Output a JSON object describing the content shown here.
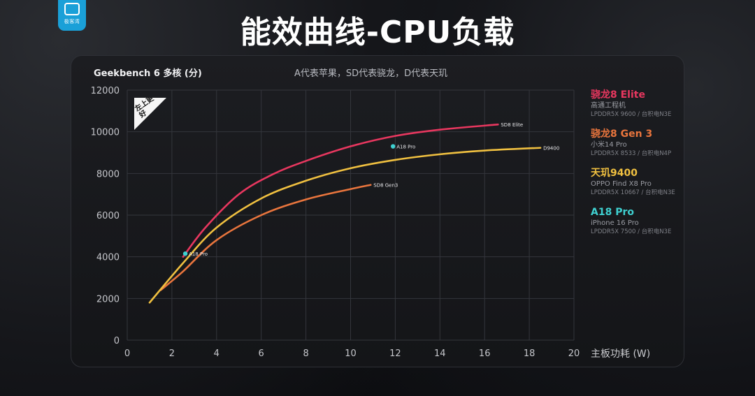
{
  "watermark": {
    "text": "极客湾"
  },
  "header": {
    "title": "能效曲线-CPU负载"
  },
  "chart_header": {
    "benchmark": "Geekbench 6 多核 (分)",
    "subtitle": "A代表苹果，SD代表骁龙，D代表天玑"
  },
  "badge": {
    "text": "左上更好"
  },
  "legend": [
    {
      "name": "骁龙8 Elite",
      "device": "高通工程机",
      "spec": "LPDDR5X 9600 / 台积电N3E",
      "color": "#e8375f"
    },
    {
      "name": "骁龙8 Gen 3",
      "device": "小米14 Pro",
      "spec": "LPDDR5X 8533 / 台积电N4P",
      "color": "#e9753d"
    },
    {
      "name": "天玑9400",
      "device": "OPPO Find X8 Pro",
      "spec": "LPDDR5X 10667 / 台积电N3E",
      "color": "#f0c040"
    },
    {
      "name": "A18 Pro",
      "device": "iPhone 16 Pro",
      "spec": "LPDDR5X 7500 / 台积电N3E",
      "color": "#3fd0d0"
    }
  ],
  "chart_data": {
    "type": "line",
    "title": "能效曲线-CPU负载",
    "xlabel": "主板功耗 (W)",
    "ylabel": "Geekbench 6 多核 (分)",
    "xlim": [
      0,
      20
    ],
    "ylim": [
      0,
      12000
    ],
    "xticks": [
      0,
      2,
      4,
      6,
      8,
      10,
      12,
      14,
      16,
      18,
      20
    ],
    "yticks": [
      0,
      2000,
      4000,
      6000,
      8000,
      10000,
      12000
    ],
    "grid": true,
    "legend_position": "right",
    "series": [
      {
        "name": "骁龙8 Elite",
        "end_label": "SD8 Elite",
        "color": "#e8375f",
        "x": [
          2.5,
          3.5,
          5,
          6.5,
          8,
          10,
          12,
          14,
          16.6
        ],
        "y": [
          4000,
          5400,
          7000,
          7950,
          8600,
          9300,
          9800,
          10100,
          10350
        ]
      },
      {
        "name": "骁龙8 Gen 3",
        "end_label": "SD8 Gen3",
        "color": "#e9753d",
        "x": [
          1.5,
          2.5,
          4,
          6,
          8,
          10,
          10.9
        ],
        "y": [
          2400,
          3300,
          4800,
          6000,
          6750,
          7250,
          7450
        ]
      },
      {
        "name": "天玑9400",
        "end_label": "D9400",
        "color": "#f0c040",
        "x": [
          1.0,
          2.5,
          4,
          6,
          8,
          10,
          12,
          14,
          16,
          18.5
        ],
        "y": [
          1800,
          3700,
          5400,
          6800,
          7650,
          8250,
          8650,
          8920,
          9100,
          9230
        ]
      },
      {
        "name": "A18 Pro",
        "color": "#3fd0d0",
        "type": "scatter",
        "x": [
          2.6,
          11.9
        ],
        "y": [
          4150,
          9300
        ],
        "labels": [
          "A18 Pro",
          "A18 Pro"
        ]
      }
    ]
  }
}
